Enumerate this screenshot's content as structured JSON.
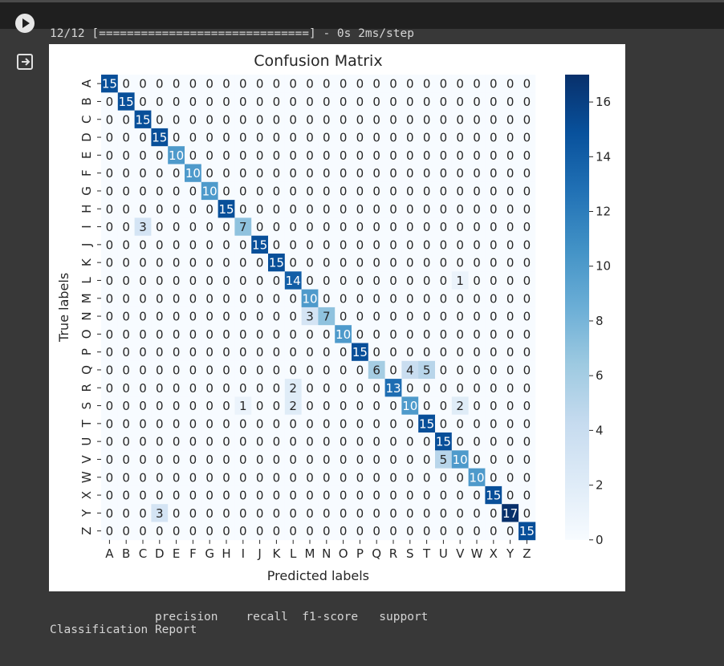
{
  "progress_text": "12/12 [==============================] - 0s 2ms/step",
  "report_title": "Classification Report",
  "report_headers": "               precision    recall  f1-score   support",
  "icons": {
    "run": "run-cell-icon",
    "output": "output-exit-icon"
  },
  "chart_data": {
    "type": "heatmap",
    "title": "Confusion Matrix",
    "xlabel": "Predicted labels",
    "ylabel": "True labels",
    "colormap": "Blues",
    "vmin": 0,
    "vmax": 17,
    "colorbar_ticks": [
      0,
      2,
      4,
      6,
      8,
      10,
      12,
      14,
      16
    ],
    "x_categories": [
      "A",
      "B",
      "C",
      "D",
      "E",
      "F",
      "G",
      "H",
      "I",
      "J",
      "K",
      "L",
      "M",
      "N",
      "O",
      "P",
      "Q",
      "R",
      "S",
      "T",
      "U",
      "V",
      "W",
      "X",
      "Y",
      "Z"
    ],
    "y_categories": [
      "A",
      "B",
      "C",
      "D",
      "E",
      "F",
      "G",
      "H",
      "I",
      "J",
      "K",
      "L",
      "M",
      "N",
      "O",
      "P",
      "Q",
      "R",
      "S",
      "T",
      "U",
      "V",
      "W",
      "X",
      "Y",
      "Z"
    ],
    "values": [
      [
        15,
        0,
        0,
        0,
        0,
        0,
        0,
        0,
        0,
        0,
        0,
        0,
        0,
        0,
        0,
        0,
        0,
        0,
        0,
        0,
        0,
        0,
        0,
        0,
        0,
        0
      ],
      [
        0,
        15,
        0,
        0,
        0,
        0,
        0,
        0,
        0,
        0,
        0,
        0,
        0,
        0,
        0,
        0,
        0,
        0,
        0,
        0,
        0,
        0,
        0,
        0,
        0,
        0
      ],
      [
        0,
        0,
        15,
        0,
        0,
        0,
        0,
        0,
        0,
        0,
        0,
        0,
        0,
        0,
        0,
        0,
        0,
        0,
        0,
        0,
        0,
        0,
        0,
        0,
        0,
        0
      ],
      [
        0,
        0,
        0,
        15,
        0,
        0,
        0,
        0,
        0,
        0,
        0,
        0,
        0,
        0,
        0,
        0,
        0,
        0,
        0,
        0,
        0,
        0,
        0,
        0,
        0,
        0
      ],
      [
        0,
        0,
        0,
        0,
        10,
        0,
        0,
        0,
        0,
        0,
        0,
        0,
        0,
        0,
        0,
        0,
        0,
        0,
        0,
        0,
        0,
        0,
        0,
        0,
        0,
        0
      ],
      [
        0,
        0,
        0,
        0,
        0,
        10,
        0,
        0,
        0,
        0,
        0,
        0,
        0,
        0,
        0,
        0,
        0,
        0,
        0,
        0,
        0,
        0,
        0,
        0,
        0,
        0
      ],
      [
        0,
        0,
        0,
        0,
        0,
        0,
        10,
        0,
        0,
        0,
        0,
        0,
        0,
        0,
        0,
        0,
        0,
        0,
        0,
        0,
        0,
        0,
        0,
        0,
        0,
        0
      ],
      [
        0,
        0,
        0,
        0,
        0,
        0,
        0,
        15,
        0,
        0,
        0,
        0,
        0,
        0,
        0,
        0,
        0,
        0,
        0,
        0,
        0,
        0,
        0,
        0,
        0,
        0
      ],
      [
        0,
        0,
        3,
        0,
        0,
        0,
        0,
        0,
        7,
        0,
        0,
        0,
        0,
        0,
        0,
        0,
        0,
        0,
        0,
        0,
        0,
        0,
        0,
        0,
        0,
        0
      ],
      [
        0,
        0,
        0,
        0,
        0,
        0,
        0,
        0,
        0,
        15,
        0,
        0,
        0,
        0,
        0,
        0,
        0,
        0,
        0,
        0,
        0,
        0,
        0,
        0,
        0,
        0
      ],
      [
        0,
        0,
        0,
        0,
        0,
        0,
        0,
        0,
        0,
        0,
        15,
        0,
        0,
        0,
        0,
        0,
        0,
        0,
        0,
        0,
        0,
        0,
        0,
        0,
        0,
        0
      ],
      [
        0,
        0,
        0,
        0,
        0,
        0,
        0,
        0,
        0,
        0,
        0,
        14,
        0,
        0,
        0,
        0,
        0,
        0,
        0,
        0,
        0,
        1,
        0,
        0,
        0,
        0
      ],
      [
        0,
        0,
        0,
        0,
        0,
        0,
        0,
        0,
        0,
        0,
        0,
        0,
        10,
        0,
        0,
        0,
        0,
        0,
        0,
        0,
        0,
        0,
        0,
        0,
        0,
        0
      ],
      [
        0,
        0,
        0,
        0,
        0,
        0,
        0,
        0,
        0,
        0,
        0,
        0,
        3,
        7,
        0,
        0,
        0,
        0,
        0,
        0,
        0,
        0,
        0,
        0,
        0,
        0
      ],
      [
        0,
        0,
        0,
        0,
        0,
        0,
        0,
        0,
        0,
        0,
        0,
        0,
        0,
        0,
        10,
        0,
        0,
        0,
        0,
        0,
        0,
        0,
        0,
        0,
        0,
        0
      ],
      [
        0,
        0,
        0,
        0,
        0,
        0,
        0,
        0,
        0,
        0,
        0,
        0,
        0,
        0,
        0,
        15,
        0,
        0,
        0,
        0,
        0,
        0,
        0,
        0,
        0,
        0
      ],
      [
        0,
        0,
        0,
        0,
        0,
        0,
        0,
        0,
        0,
        0,
        0,
        0,
        0,
        0,
        0,
        0,
        6,
        0,
        4,
        5,
        0,
        0,
        0,
        0,
        0,
        0
      ],
      [
        0,
        0,
        0,
        0,
        0,
        0,
        0,
        0,
        0,
        0,
        0,
        2,
        0,
        0,
        0,
        0,
        0,
        13,
        0,
        0,
        0,
        0,
        0,
        0,
        0,
        0
      ],
      [
        0,
        0,
        0,
        0,
        0,
        0,
        0,
        0,
        1,
        0,
        0,
        2,
        0,
        0,
        0,
        0,
        0,
        0,
        10,
        0,
        0,
        2,
        0,
        0,
        0,
        0
      ],
      [
        0,
        0,
        0,
        0,
        0,
        0,
        0,
        0,
        0,
        0,
        0,
        0,
        0,
        0,
        0,
        0,
        0,
        0,
        0,
        15,
        0,
        0,
        0,
        0,
        0,
        0
      ],
      [
        0,
        0,
        0,
        0,
        0,
        0,
        0,
        0,
        0,
        0,
        0,
        0,
        0,
        0,
        0,
        0,
        0,
        0,
        0,
        0,
        15,
        0,
        0,
        0,
        0,
        0
      ],
      [
        0,
        0,
        0,
        0,
        0,
        0,
        0,
        0,
        0,
        0,
        0,
        0,
        0,
        0,
        0,
        0,
        0,
        0,
        0,
        0,
        5,
        10,
        0,
        0,
        0,
        0
      ],
      [
        0,
        0,
        0,
        0,
        0,
        0,
        0,
        0,
        0,
        0,
        0,
        0,
        0,
        0,
        0,
        0,
        0,
        0,
        0,
        0,
        0,
        0,
        10,
        0,
        0,
        0
      ],
      [
        0,
        0,
        0,
        0,
        0,
        0,
        0,
        0,
        0,
        0,
        0,
        0,
        0,
        0,
        0,
        0,
        0,
        0,
        0,
        0,
        0,
        0,
        0,
        15,
        0,
        0
      ],
      [
        0,
        0,
        0,
        3,
        0,
        0,
        0,
        0,
        0,
        0,
        0,
        0,
        0,
        0,
        0,
        0,
        0,
        0,
        0,
        0,
        0,
        0,
        0,
        0,
        17,
        0
      ],
      [
        0,
        0,
        0,
        0,
        0,
        0,
        0,
        0,
        0,
        0,
        0,
        0,
        0,
        0,
        0,
        0,
        0,
        0,
        0,
        0,
        0,
        0,
        0,
        0,
        0,
        15
      ]
    ]
  }
}
